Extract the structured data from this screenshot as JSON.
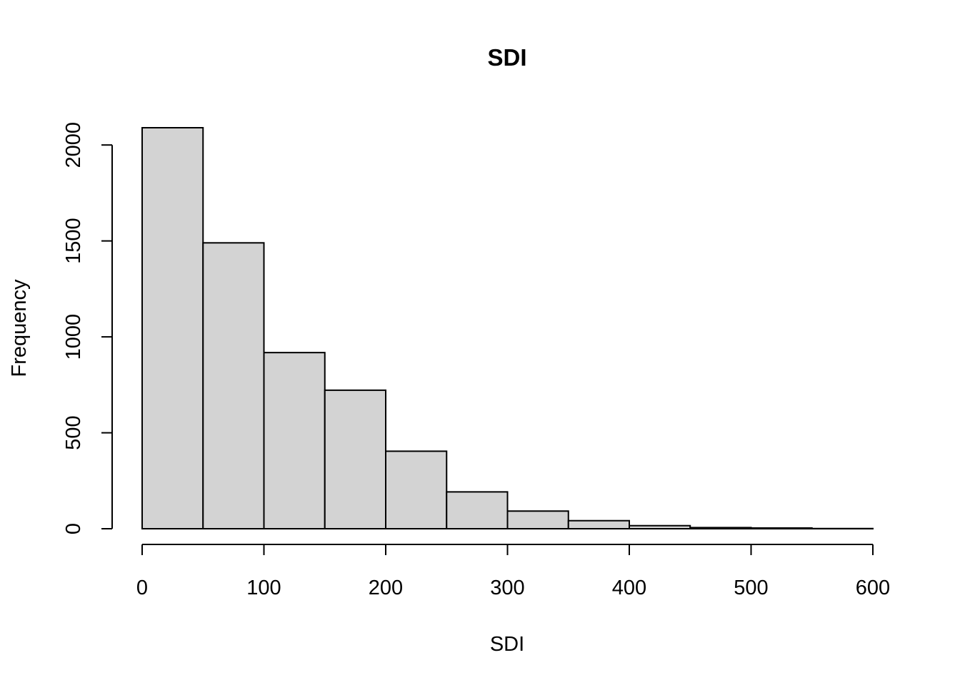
{
  "chart_data": {
    "type": "bar",
    "title": "SDI",
    "xlabel": "SDI",
    "ylabel": "Frequency",
    "bins": [
      [
        0,
        50
      ],
      [
        50,
        100
      ],
      [
        100,
        150
      ],
      [
        150,
        200
      ],
      [
        200,
        250
      ],
      [
        250,
        300
      ],
      [
        300,
        350
      ],
      [
        350,
        400
      ],
      [
        400,
        450
      ],
      [
        450,
        500
      ],
      [
        500,
        550
      ],
      [
        550,
        600
      ]
    ],
    "values": [
      2090,
      1490,
      918,
      722,
      404,
      192,
      92,
      42,
      16,
      6,
      4,
      1
    ],
    "xlim": [
      0,
      600
    ],
    "ylim": [
      0,
      2090
    ],
    "xticks": [
      "0",
      "100",
      "200",
      "300",
      "400",
      "500",
      "600"
    ],
    "yticks": [
      "0",
      "500",
      "1000",
      "1500",
      "2000"
    ],
    "grid": false,
    "colors": {
      "bar_fill": "#d3d3d3",
      "bar_stroke": "#000000"
    }
  }
}
